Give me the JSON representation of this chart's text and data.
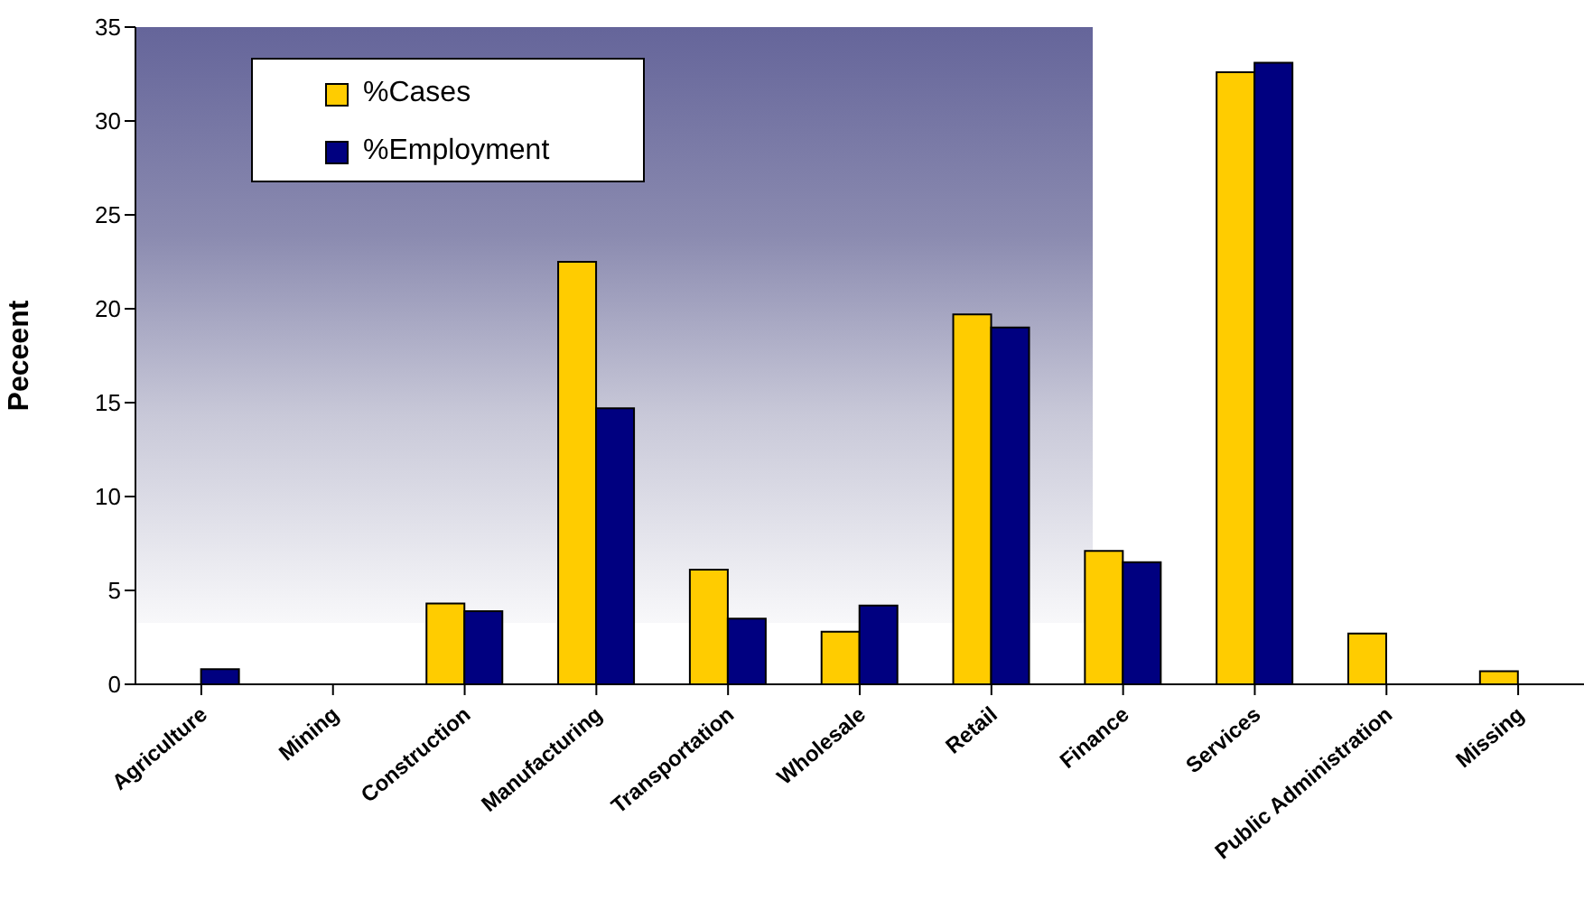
{
  "chart_data": {
    "type": "bar",
    "ylabel": "Peceent",
    "categories": [
      "Agriculture",
      "Mining",
      "Construction",
      "Manufacturing",
      "Transportation",
      "Wholesale",
      "Retail",
      "Finance",
      "Services",
      "Public Administration",
      "Missing"
    ],
    "series": [
      {
        "name": "%Cases",
        "color": "#ffcc00",
        "values": [
          0,
          0,
          4.3,
          22.5,
          6.1,
          2.8,
          19.7,
          7.1,
          32.6,
          2.7,
          0.7
        ]
      },
      {
        "name": "%Employment",
        "color": "#000080",
        "values": [
          0.8,
          0,
          3.9,
          14.7,
          3.5,
          4.2,
          19.0,
          6.5,
          33.1,
          0,
          0
        ]
      }
    ],
    "ylim": [
      0,
      35
    ],
    "yticks": [
      0,
      5,
      10,
      15,
      20,
      25,
      30,
      35
    ],
    "legend": "top left"
  }
}
